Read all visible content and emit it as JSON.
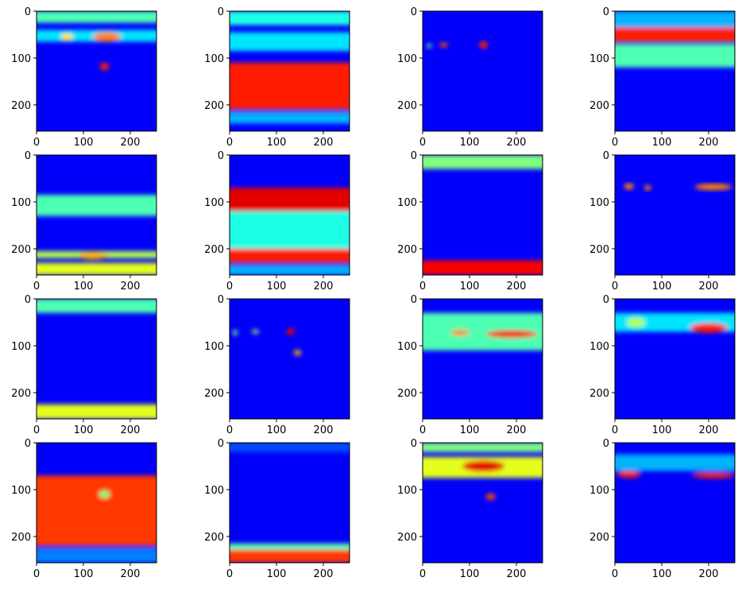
{
  "chart_data": {
    "type": "heatmap",
    "rows": 4,
    "cols": 4,
    "colormap": "jet",
    "image_shape": [
      256,
      256
    ],
    "xlim": [
      0,
      256
    ],
    "ylim": [
      256,
      0
    ],
    "xticks": [
      0,
      100,
      200
    ],
    "yticks": [
      0,
      100,
      200
    ],
    "panels": [
      {
        "id": "r1c1",
        "bands": [
          {
            "y0": 0,
            "y1": 25,
            "v": 0.45
          },
          {
            "y0": 40,
            "y1": 65,
            "v": 0.35
          }
        ],
        "blobs": [
          {
            "x": 145,
            "y": 118,
            "rx": 10,
            "ry": 8,
            "v": 0.85
          },
          {
            "x": 150,
            "y": 55,
            "rx": 30,
            "ry": 10,
            "v": 0.75
          },
          {
            "x": 65,
            "y": 55,
            "rx": 12,
            "ry": 8,
            "v": 0.65
          }
        ]
      },
      {
        "id": "r1c2",
        "bands": [
          {
            "y0": 0,
            "y1": 30,
            "v": 0.4
          },
          {
            "y0": 45,
            "y1": 85,
            "v": 0.35
          },
          {
            "y0": 110,
            "y1": 210,
            "v": 0.85
          },
          {
            "y0": 215,
            "y1": 240,
            "v": 0.3
          }
        ],
        "blobs": []
      },
      {
        "id": "r1c3",
        "bands": [],
        "blobs": [
          {
            "x": 45,
            "y": 72,
            "rx": 9,
            "ry": 5,
            "v": 0.8
          },
          {
            "x": 130,
            "y": 72,
            "rx": 9,
            "ry": 8,
            "v": 0.85
          },
          {
            "x": 14,
            "y": 74,
            "rx": 5,
            "ry": 5,
            "v": 0.5
          }
        ]
      },
      {
        "id": "r1c4",
        "bands": [
          {
            "y0": 0,
            "y1": 35,
            "v": 0.3
          },
          {
            "y0": 35,
            "y1": 65,
            "v": 0.85
          },
          {
            "y0": 70,
            "y1": 120,
            "v": 0.45
          }
        ],
        "blobs": []
      },
      {
        "id": "r2c1",
        "bands": [
          {
            "y0": 85,
            "y1": 130,
            "v": 0.45
          },
          {
            "y0": 205,
            "y1": 220,
            "v": 0.55
          },
          {
            "y0": 230,
            "y1": 256,
            "v": 0.6
          }
        ],
        "blobs": [
          {
            "x": 120,
            "y": 215,
            "rx": 30,
            "ry": 8,
            "v": 0.7
          }
        ]
      },
      {
        "id": "r2c2",
        "bands": [
          {
            "y0": 70,
            "y1": 120,
            "v": 0.9
          },
          {
            "y0": 120,
            "y1": 200,
            "v": 0.4
          },
          {
            "y0": 200,
            "y1": 230,
            "v": 0.85
          },
          {
            "y0": 235,
            "y1": 256,
            "v": 0.3
          }
        ],
        "blobs": []
      },
      {
        "id": "r2c3",
        "bands": [
          {
            "y0": 0,
            "y1": 30,
            "v": 0.5
          },
          {
            "y0": 225,
            "y1": 256,
            "v": 0.88
          }
        ],
        "blobs": []
      },
      {
        "id": "r2c4",
        "bands": [],
        "blobs": [
          {
            "x": 30,
            "y": 67,
            "rx": 10,
            "ry": 7,
            "v": 0.75
          },
          {
            "x": 70,
            "y": 70,
            "rx": 7,
            "ry": 6,
            "v": 0.75
          },
          {
            "x": 210,
            "y": 68,
            "rx": 40,
            "ry": 7,
            "v": 0.75
          }
        ]
      },
      {
        "id": "r3c1",
        "bands": [
          {
            "y0": 0,
            "y1": 30,
            "v": 0.45
          },
          {
            "y0": 225,
            "y1": 256,
            "v": 0.6
          }
        ],
        "blobs": []
      },
      {
        "id": "r3c2",
        "bands": [],
        "blobs": [
          {
            "x": 130,
            "y": 70,
            "rx": 8,
            "ry": 8,
            "v": 0.9
          },
          {
            "x": 145,
            "y": 115,
            "rx": 8,
            "ry": 6,
            "v": 0.7
          },
          {
            "x": 55,
            "y": 70,
            "rx": 8,
            "ry": 4,
            "v": 0.55
          },
          {
            "x": 12,
            "y": 72,
            "rx": 5,
            "ry": 6,
            "v": 0.5
          }
        ]
      },
      {
        "id": "r3c3",
        "bands": [
          {
            "y0": 30,
            "y1": 110,
            "v": 0.45
          }
        ],
        "blobs": [
          {
            "x": 190,
            "y": 75,
            "rx": 55,
            "ry": 8,
            "v": 0.88
          },
          {
            "x": 80,
            "y": 72,
            "rx": 20,
            "ry": 6,
            "v": 0.75
          }
        ]
      },
      {
        "id": "r3c4",
        "bands": [
          {
            "y0": 30,
            "y1": 70,
            "v": 0.35
          }
        ],
        "blobs": [
          {
            "x": 200,
            "y": 62,
            "rx": 40,
            "ry": 10,
            "v": 0.85
          },
          {
            "x": 45,
            "y": 50,
            "rx": 20,
            "ry": 10,
            "v": 0.55
          }
        ]
      },
      {
        "id": "r4c1",
        "bands": [
          {
            "y0": 70,
            "y1": 220,
            "v": 0.82
          },
          {
            "y0": 225,
            "y1": 256,
            "v": 0.25
          }
        ],
        "blobs": [
          {
            "x": 145,
            "y": 110,
            "rx": 12,
            "ry": 8,
            "v": 0.5
          }
        ]
      },
      {
        "id": "r4c2",
        "bands": [
          {
            "y0": 0,
            "y1": 20,
            "v": 0.2
          },
          {
            "y0": 215,
            "y1": 228,
            "v": 0.45
          },
          {
            "y0": 228,
            "y1": 256,
            "v": 0.82
          }
        ],
        "blobs": []
      },
      {
        "id": "r4c3",
        "bands": [
          {
            "y0": 0,
            "y1": 20,
            "v": 0.5
          },
          {
            "y0": 30,
            "y1": 75,
            "v": 0.6
          }
        ],
        "blobs": [
          {
            "x": 130,
            "y": 50,
            "rx": 45,
            "ry": 12,
            "v": 0.9
          },
          {
            "x": 145,
            "y": 115,
            "rx": 10,
            "ry": 7,
            "v": 0.8
          }
        ]
      },
      {
        "id": "r4c4",
        "bands": [
          {
            "y0": 25,
            "y1": 60,
            "v": 0.3
          }
        ],
        "blobs": [
          {
            "x": 30,
            "y": 68,
            "rx": 25,
            "ry": 7,
            "v": 0.85
          },
          {
            "x": 210,
            "y": 70,
            "rx": 45,
            "ry": 6,
            "v": 0.85
          }
        ]
      }
    ]
  }
}
